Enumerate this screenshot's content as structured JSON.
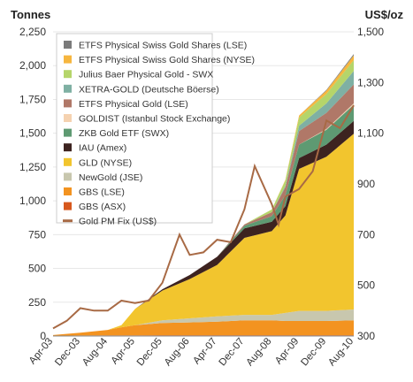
{
  "chart_data": {
    "type": "area",
    "title": "",
    "left_axis": {
      "label": "Tonnes",
      "min": 0,
      "max": 2250,
      "ticks": [
        "0",
        "250",
        "500",
        "750",
        "1,000",
        "1,250",
        "1,500",
        "1,750",
        "2,000",
        "2,250"
      ]
    },
    "right_axis": {
      "label": "US$/oz",
      "min": 300,
      "max": 1500,
      "ticks": [
        "300",
        "500",
        "700",
        "900",
        "1,100",
        "1,300",
        "1,500"
      ]
    },
    "x_ticks": [
      "Apr-03",
      "Dec-03",
      "Aug-04",
      "Apr-05",
      "Dec-05",
      "Aug-06",
      "Apr-07",
      "Dec-07",
      "Aug-08",
      "Apr-09",
      "Dec-09",
      "Aug-10"
    ],
    "x": [
      "Apr-03",
      "Dec-03",
      "Aug-04",
      "Dec-04",
      "Apr-05",
      "Dec-05",
      "Aug-06",
      "Apr-07",
      "Dec-07",
      "Aug-08",
      "Dec-08",
      "Apr-09",
      "Dec-09",
      "Aug-10"
    ],
    "series": [
      {
        "name": "ETFS Physical Swiss Gold Shares (LSE)",
        "color": "#7b7b7b",
        "values": [
          0,
          0,
          0,
          0,
          0,
          0,
          0,
          0,
          0,
          0,
          0,
          0,
          5,
          10
        ]
      },
      {
        "name": "ETFS Physical Swiss Gold Shares (NYSE)",
        "color": "#f6b63f",
        "values": [
          0,
          0,
          0,
          0,
          0,
          0,
          0,
          0,
          0,
          0,
          5,
          15,
          25,
          35
        ]
      },
      {
        "name": "Julius Baer Physical Gold - SWX",
        "color": "#b5d56a",
        "values": [
          0,
          0,
          0,
          0,
          0,
          0,
          0,
          0,
          0,
          20,
          40,
          60,
          70,
          80
        ]
      },
      {
        "name": "XETRA-GOLD (Deutsche Böerse)",
        "color": "#7fb0a3",
        "values": [
          0,
          0,
          0,
          0,
          0,
          0,
          0,
          0,
          0,
          0,
          10,
          40,
          70,
          100
        ]
      },
      {
        "name": "ETFS Physical Gold (LSE)",
        "color": "#b07868",
        "values": [
          0,
          0,
          0,
          0,
          0,
          0,
          0,
          0,
          10,
          30,
          60,
          100,
          120,
          140
        ]
      },
      {
        "name": "GOLDIST (Istanbul Stock Exchange)",
        "color": "#f5d2b0",
        "values": [
          0,
          0,
          0,
          0,
          0,
          0,
          0,
          0,
          0,
          0,
          0,
          0,
          5,
          10
        ]
      },
      {
        "name": "ZKB Gold ETF (SWX)",
        "color": "#5e9a72",
        "values": [
          0,
          0,
          0,
          0,
          0,
          0,
          0,
          0,
          20,
          40,
          80,
          100,
          110,
          120
        ]
      },
      {
        "name": "IAU (Amex)",
        "color": "#3d2320",
        "values": [
          0,
          0,
          0,
          0,
          0,
          10,
          30,
          60,
          70,
          70,
          70,
          80,
          90,
          95
        ]
      },
      {
        "name": "GLD (NYSE)",
        "color": "#f2c52e",
        "values": [
          0,
          0,
          0,
          15,
          120,
          220,
          290,
          380,
          570,
          620,
          720,
          1050,
          1140,
          1300
        ]
      },
      {
        "name": "NewGold (JSE)",
        "color": "#c8c7ae",
        "values": [
          0,
          0,
          0,
          0,
          0,
          20,
          30,
          40,
          40,
          40,
          60,
          75,
          75,
          80
        ]
      },
      {
        "name": "GBS (LSE)",
        "color": "#f39320",
        "values": [
          5,
          20,
          40,
          60,
          75,
          90,
          95,
          100,
          110,
          110,
          105,
          105,
          105,
          110
        ]
      },
      {
        "name": "GBS (ASX)",
        "color": "#d7581d",
        "values": [
          2,
          4,
          5,
          5,
          5,
          6,
          6,
          6,
          6,
          6,
          6,
          6,
          6,
          6
        ]
      }
    ],
    "gold_price": {
      "name": "Gold PM Fix (US$)",
      "color": "#a86a45",
      "x": [
        "Apr-03",
        "Aug-03",
        "Dec-03",
        "Apr-04",
        "Aug-04",
        "Dec-04",
        "Apr-05",
        "Aug-05",
        "Dec-05",
        "May-06",
        "Aug-06",
        "Dec-06",
        "Apr-07",
        "Aug-07",
        "Dec-07",
        "Mar-08",
        "Aug-08",
        "Oct-08",
        "Dec-08",
        "Apr-09",
        "Aug-09",
        "Dec-09",
        "Apr-10",
        "Aug-10"
      ],
      "values": [
        330,
        360,
        410,
        400,
        400,
        440,
        430,
        440,
        510,
        700,
        620,
        630,
        680,
        670,
        800,
        970,
        820,
        740,
        850,
        880,
        950,
        1150,
        1120,
        1210
      ]
    },
    "legend_position": "top-left"
  }
}
